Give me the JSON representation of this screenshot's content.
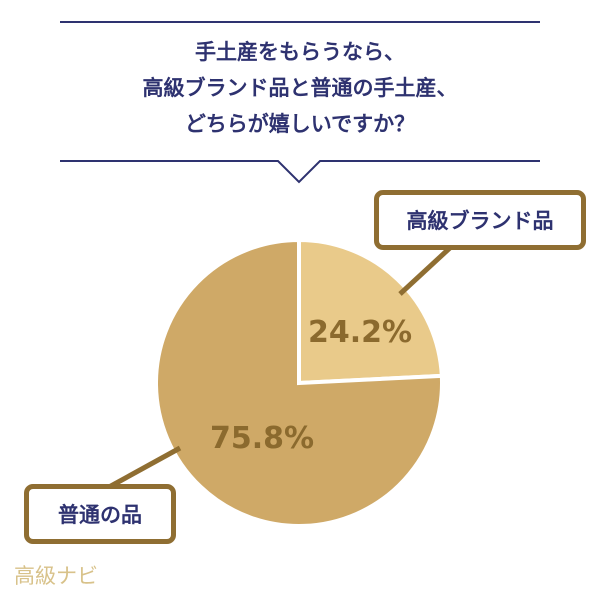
{
  "chart_data": {
    "type": "pie",
    "title": [
      "手土産をもらうなら、",
      "高級ブランド品と普通の手土産、",
      "どちらが嬉しいですか？"
    ],
    "slices": [
      {
        "label": "高級ブランド品",
        "value": 24.2,
        "display": "24.2%",
        "color": "#e9ca8a"
      },
      {
        "label": "普通の品",
        "value": 75.8,
        "display": "75.8%",
        "color": "#cfa967"
      }
    ],
    "label_color": "#8b6a2e",
    "title_color": "#2e3270"
  },
  "watermark": "高級ナビ"
}
